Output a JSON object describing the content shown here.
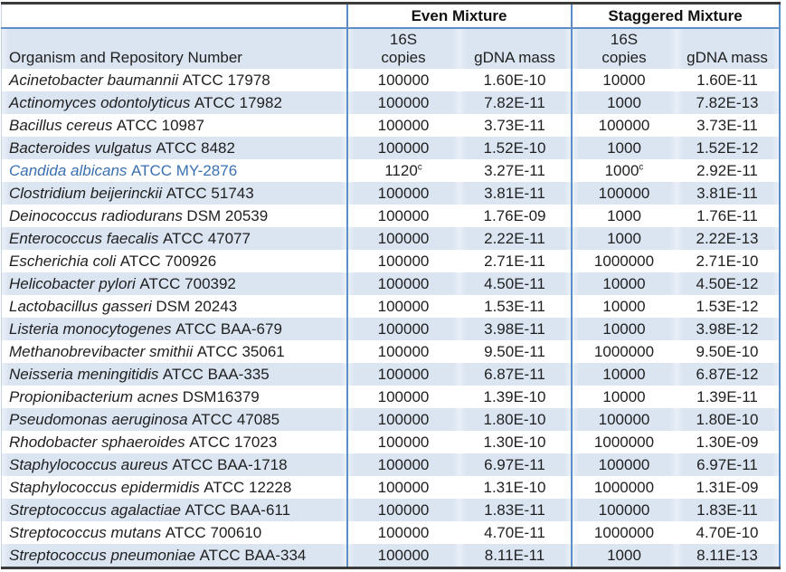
{
  "table": {
    "header": {
      "organism_col": "Organism and Repository Number",
      "even_mixture": "Even Mixture",
      "staggered_mixture": "Staggered Mixture",
      "copies_line1": "16S",
      "copies_line2": "copies",
      "gdna": "gDNA mass"
    },
    "rows": [
      {
        "organism": "Acinetobacter baumannii",
        "repo": "ATCC 17978",
        "even_copies": "100000",
        "even_gdna": "1.60E-10",
        "stag_copies": "10000",
        "stag_gdna": "1.60E-11"
      },
      {
        "organism": "Actinomyces odontolyticus",
        "repo": "ATCC 17982",
        "even_copies": "100000",
        "even_gdna": "7.82E-11",
        "stag_copies": "1000",
        "stag_gdna": "7.82E-13"
      },
      {
        "organism": "Bacillus cereus",
        "repo": "ATCC 10987",
        "even_copies": "100000",
        "even_gdna": "3.73E-11",
        "stag_copies": "100000",
        "stag_gdna": "3.73E-11"
      },
      {
        "organism": "Bacteroides vulgatus",
        "repo": "ATCC 8482",
        "even_copies": "100000",
        "even_gdna": "1.52E-10",
        "stag_copies": "1000",
        "stag_gdna": "1.52E-12"
      },
      {
        "organism": "Candida albicans",
        "repo": "ATCC MY-2876",
        "even_copies": "1120",
        "even_copies_sup": "c",
        "even_gdna": "3.27E-11",
        "stag_copies": "1000",
        "stag_copies_sup": "c",
        "stag_gdna": "2.92E-11",
        "name_color": "#3a6fb0"
      },
      {
        "organism": "Clostridium beijerinckii",
        "repo": "ATCC 51743",
        "even_copies": "100000",
        "even_gdna": "3.81E-11",
        "stag_copies": "100000",
        "stag_gdna": "3.81E-11"
      },
      {
        "organism": "Deinococcus radiodurans",
        "repo": "DSM 20539",
        "even_copies": "100000",
        "even_gdna": "1.76E-09",
        "stag_copies": "1000",
        "stag_gdna": "1.76E-11"
      },
      {
        "organism": "Enterococcus faecalis",
        "repo": "ATCC 47077",
        "even_copies": "100000",
        "even_gdna": "2.22E-11",
        "stag_copies": "1000",
        "stag_gdna": "2.22E-13"
      },
      {
        "organism": "Escherichia coli",
        "repo": "ATCC 700926",
        "even_copies": "100000",
        "even_gdna": "2.71E-11",
        "stag_copies": "1000000",
        "stag_gdna": "2.71E-10"
      },
      {
        "organism": "Helicobacter pylori",
        "repo": "ATCC 700392",
        "even_copies": "100000",
        "even_gdna": "4.50E-11",
        "stag_copies": "10000",
        "stag_gdna": "4.50E-12"
      },
      {
        "organism": "Lactobacillus gasseri",
        "repo": "DSM 20243",
        "even_copies": "100000",
        "even_gdna": "1.53E-11",
        "stag_copies": "10000",
        "stag_gdna": "1.53E-12"
      },
      {
        "organism": "Listeria monocytogenes",
        "repo": "ATCC BAA-679",
        "even_copies": "100000",
        "even_gdna": "3.98E-11",
        "stag_copies": "10000",
        "stag_gdna": "3.98E-12"
      },
      {
        "organism": "Methanobrevibacter smithii",
        "repo": "ATCC 35061",
        "even_copies": "100000",
        "even_gdna": "9.50E-11",
        "stag_copies": "1000000",
        "stag_gdna": "9.50E-10"
      },
      {
        "organism": "Neisseria meningitidis",
        "repo": "ATCC BAA-335",
        "even_copies": "100000",
        "even_gdna": "6.87E-11",
        "stag_copies": "10000",
        "stag_gdna": "6.87E-12"
      },
      {
        "organism": "Propionibacterium acnes",
        "repo": "DSM16379",
        "even_copies": "100000",
        "even_gdna": "1.39E-10",
        "stag_copies": "10000",
        "stag_gdna": "1.39E-11"
      },
      {
        "organism": "Pseudomonas aeruginosa",
        "repo": "ATCC 47085",
        "even_copies": "100000",
        "even_gdna": "1.80E-10",
        "stag_copies": "100000",
        "stag_gdna": "1.80E-10"
      },
      {
        "organism": "Rhodobacter sphaeroides",
        "repo": "ATCC 17023",
        "even_copies": "100000",
        "even_gdna": "1.30E-10",
        "stag_copies": "1000000",
        "stag_gdna": "1.30E-09"
      },
      {
        "organism": "Staphylococcus aureus",
        "repo": "ATCC BAA-1718",
        "even_copies": "100000",
        "even_gdna": "6.97E-11",
        "stag_copies": "100000",
        "stag_gdna": "6.97E-11"
      },
      {
        "organism": "Staphylococcus epidermidis",
        "repo": "ATCC 12228",
        "even_copies": "100000",
        "even_gdna": "1.31E-10",
        "stag_copies": "1000000",
        "stag_gdna": "1.31E-09"
      },
      {
        "organism": "Streptococcus agalactiae",
        "repo": "ATCC BAA-611",
        "even_copies": "100000",
        "even_gdna": "1.83E-11",
        "stag_copies": "100000",
        "stag_gdna": "1.83E-11"
      },
      {
        "organism": "Streptococcus mutans",
        "repo": "ATCC 700610",
        "even_copies": "100000",
        "even_gdna": "4.70E-11",
        "stag_copies": "1000000",
        "stag_gdna": "4.70E-10"
      },
      {
        "organism": "Streptococcus pneumoniae",
        "repo": "ATCC BAA-334",
        "even_copies": "100000",
        "even_gdna": "8.11E-11",
        "stag_copies": "1000",
        "stag_gdna": "8.11E-13"
      }
    ]
  },
  "colors": {
    "row_band": "#dbe5f1",
    "border_blue": "#5c8fc7",
    "border_dark": "#3b3b3b",
    "highlight_organism": "#3a6fb0"
  }
}
